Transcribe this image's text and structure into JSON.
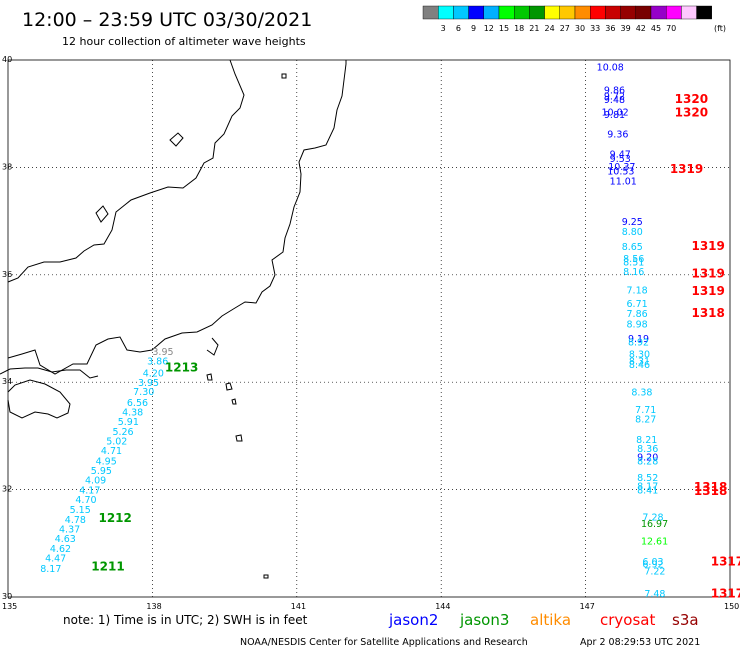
{
  "header": {
    "title": "12:00 – 23:59 UTC 03/30/2021",
    "subtitle": "12 hour collection of altimeter wave heights"
  },
  "legend": {
    "unit": "(ft)",
    "colors": [
      "#808080",
      "#00ffff",
      "#00c8ff",
      "#0000ff",
      "#00b0ff",
      "#00ff00",
      "#00c800",
      "#009600",
      "#ffff00",
      "#ffc800",
      "#ff8c00",
      "#ff0000",
      "#c80000",
      "#960000",
      "#780000",
      "#9600c8",
      "#ff00ff",
      "#ffc8ff",
      "#000000"
    ],
    "labels": [
      "3",
      "6",
      "9",
      "12",
      "15",
      "18",
      "21",
      "24",
      "27",
      "30",
      "33",
      "36",
      "39",
      "42",
      "45",
      "70"
    ]
  },
  "map": {
    "lat_labels": [
      "40",
      "38",
      "36",
      "34",
      "32",
      "30"
    ],
    "lon_labels": [
      "135",
      "138",
      "141",
      "144",
      "147",
      "150"
    ]
  },
  "tracks": {
    "west": {
      "color": "#00c8ff",
      "labels": [
        {
          "t": "3.95",
          "lon": 138.0,
          "lat": 34.51,
          "c": "#888888"
        },
        {
          "t": "3.86",
          "lon": 137.89,
          "lat": 34.33
        },
        {
          "t": "4.20",
          "lon": 137.8,
          "lat": 34.11
        },
        {
          "t": "3.95",
          "lon": 137.7,
          "lat": 33.93
        },
        {
          "t": "7.30",
          "lon": 137.6,
          "lat": 33.76
        },
        {
          "t": "6.56",
          "lon": 137.47,
          "lat": 33.56
        },
        {
          "t": "4.38",
          "lon": 137.37,
          "lat": 33.38
        },
        {
          "t": "5.91",
          "lon": 137.28,
          "lat": 33.2
        },
        {
          "t": "5.26",
          "lon": 137.17,
          "lat": 33.02
        },
        {
          "t": "5.02",
          "lon": 137.04,
          "lat": 32.84
        },
        {
          "t": "4.71",
          "lon": 136.93,
          "lat": 32.66
        },
        {
          "t": "4.95",
          "lon": 136.82,
          "lat": 32.47
        },
        {
          "t": "5.95",
          "lon": 136.72,
          "lat": 32.29
        },
        {
          "t": "4.09",
          "lon": 136.6,
          "lat": 32.11
        },
        {
          "t": "4.17",
          "lon": 136.48,
          "lat": 31.93
        },
        {
          "t": "4.70",
          "lon": 136.4,
          "lat": 31.75
        },
        {
          "t": "5.15",
          "lon": 136.28,
          "lat": 31.56
        },
        {
          "t": "4.78",
          "lon": 136.18,
          "lat": 31.38
        },
        {
          "t": "4.37",
          "lon": 136.06,
          "lat": 31.2
        },
        {
          "t": "4.63",
          "lon": 135.97,
          "lat": 31.02
        },
        {
          "t": "4.62",
          "lon": 135.87,
          "lat": 30.84
        },
        {
          "t": "4.47",
          "lon": 135.77,
          "lat": 30.66
        },
        {
          "t": "8.17",
          "lon": 135.67,
          "lat": 30.47
        }
      ],
      "times": [
        {
          "t": "1213",
          "lon": 138.26,
          "lat": 34.2,
          "c": "#009600"
        },
        {
          "t": "1212",
          "lon": 136.88,
          "lat": 31.4,
          "c": "#009600"
        },
        {
          "t": "1211",
          "lon": 136.73,
          "lat": 30.49,
          "c": "#009600"
        }
      ]
    },
    "east": {
      "labels": [
        {
          "t": "10.08",
          "lon": 147.23,
          "lat": 39.8,
          "c": "#0000ff"
        },
        {
          "t": "9.86",
          "lon": 147.38,
          "lat": 39.38,
          "c": "#0000ff"
        },
        {
          "t": "9.72",
          "lon": 147.38,
          "lat": 39.26,
          "c": "#0000ff"
        },
        {
          "t": "9.48",
          "lon": 147.38,
          "lat": 39.2,
          "c": "#0000ff"
        },
        {
          "t": "10.02",
          "lon": 147.33,
          "lat": 38.97,
          "c": "#0000ff"
        },
        {
          "t": "9.81",
          "lon": 147.38,
          "lat": 38.92,
          "c": "#0000ff"
        },
        {
          "t": "9.36",
          "lon": 147.45,
          "lat": 38.56,
          "c": "#0000ff"
        },
        {
          "t": "9.47",
          "lon": 147.5,
          "lat": 38.18,
          "c": "#0000ff"
        },
        {
          "t": "9.53",
          "lon": 147.5,
          "lat": 38.1,
          "c": "#0000ff"
        },
        {
          "t": "10.37",
          "lon": 147.47,
          "lat": 37.95,
          "c": "#0000ff"
        },
        {
          "t": "10.53",
          "lon": 147.45,
          "lat": 37.87,
          "c": "#0000ff"
        },
        {
          "t": "11.01",
          "lon": 147.5,
          "lat": 37.68,
          "c": "#0000ff"
        },
        {
          "t": "9.25",
          "lon": 147.75,
          "lat": 36.93,
          "c": "#0000ff"
        },
        {
          "t": "8.80",
          "lon": 147.75,
          "lat": 36.74,
          "c": "#00c8ff"
        },
        {
          "t": "8.65",
          "lon": 147.75,
          "lat": 36.46,
          "c": "#00c8ff"
        },
        {
          "t": "8.56",
          "lon": 147.78,
          "lat": 36.24,
          "c": "#00c8ff"
        },
        {
          "t": "8.51",
          "lon": 147.78,
          "lat": 36.17,
          "c": "#00c8ff"
        },
        {
          "t": "8.16",
          "lon": 147.78,
          "lat": 36.0,
          "c": "#00c8ff"
        },
        {
          "t": "7.18",
          "lon": 147.85,
          "lat": 35.65,
          "c": "#00c8ff"
        },
        {
          "t": "6.71",
          "lon": 147.85,
          "lat": 35.4,
          "c": "#00c8ff"
        },
        {
          "t": "7.86",
          "lon": 147.85,
          "lat": 35.21,
          "c": "#00c8ff"
        },
        {
          "t": "8.98",
          "lon": 147.85,
          "lat": 35.02,
          "c": "#00c8ff"
        },
        {
          "t": "9.19",
          "lon": 147.88,
          "lat": 34.75,
          "c": "#0000ff"
        },
        {
          "t": "8.92",
          "lon": 147.88,
          "lat": 34.68,
          "c": "#00c8ff"
        },
        {
          "t": "8.30",
          "lon": 147.9,
          "lat": 34.46,
          "c": "#00c8ff"
        },
        {
          "t": "8.31",
          "lon": 147.9,
          "lat": 34.33,
          "c": "#00c8ff"
        },
        {
          "t": "8.46",
          "lon": 147.9,
          "lat": 34.26,
          "c": "#00c8ff"
        },
        {
          "t": "8.38",
          "lon": 147.95,
          "lat": 33.75,
          "c": "#00c8ff"
        },
        {
          "t": "7.71",
          "lon": 148.03,
          "lat": 33.43,
          "c": "#00c8ff"
        },
        {
          "t": "8.27",
          "lon": 148.03,
          "lat": 33.25,
          "c": "#00c8ff"
        },
        {
          "t": "8.21",
          "lon": 148.05,
          "lat": 32.87,
          "c": "#00c8ff"
        },
        {
          "t": "8.36",
          "lon": 148.07,
          "lat": 32.7,
          "c": "#00c8ff"
        },
        {
          "t": "9.20",
          "lon": 148.07,
          "lat": 32.54,
          "c": "#0000ff"
        },
        {
          "t": "8.28",
          "lon": 148.07,
          "lat": 32.47,
          "c": "#00c8ff"
        },
        {
          "t": "8.52",
          "lon": 148.07,
          "lat": 32.16,
          "c": "#00c8ff"
        },
        {
          "t": "8.17",
          "lon": 148.07,
          "lat": 32.0,
          "c": "#00c8ff"
        },
        {
          "t": "8.41",
          "lon": 148.07,
          "lat": 31.93,
          "c": "#00c8ff"
        },
        {
          "t": "7.28",
          "lon": 148.18,
          "lat": 31.42,
          "c": "#00c8ff"
        },
        {
          "t": "16.97",
          "lon": 148.15,
          "lat": 31.3,
          "c": "#009600"
        },
        {
          "t": "12.61",
          "lon": 148.15,
          "lat": 30.98,
          "c": "#00ff00"
        },
        {
          "t": "6.03",
          "lon": 148.18,
          "lat": 30.6,
          "c": "#00c8ff"
        },
        {
          "t": "6.92",
          "lon": 148.18,
          "lat": 30.55,
          "c": "#00c8ff"
        },
        {
          "t": "7.22",
          "lon": 148.22,
          "lat": 30.42,
          "c": "#00c8ff"
        },
        {
          "t": "7.48",
          "lon": 148.22,
          "lat": 30.0,
          "c": "#00c8ff"
        }
      ],
      "times": [
        {
          "t": "1320",
          "lon": 148.85,
          "lat": 39.2,
          "c": "#ff0000"
        },
        {
          "t": "1320",
          "lon": 148.85,
          "lat": 38.95,
          "c": "#ff0000"
        },
        {
          "t": "1319",
          "lon": 148.75,
          "lat": 37.9,
          "c": "#ff0000"
        },
        {
          "t": "1319",
          "lon": 149.2,
          "lat": 36.46,
          "c": "#ff0000"
        },
        {
          "t": "1319",
          "lon": 149.2,
          "lat": 35.95,
          "c": "#ff0000"
        },
        {
          "t": "1319",
          "lon": 149.2,
          "lat": 35.62,
          "c": "#ff0000"
        },
        {
          "t": "1318",
          "lon": 149.2,
          "lat": 35.21,
          "c": "#ff0000"
        },
        {
          "t": "1318",
          "lon": 149.25,
          "lat": 31.97,
          "c": "#ff0000"
        },
        {
          "t": "1318",
          "lon": 149.25,
          "lat": 31.9,
          "c": "#ff0000"
        },
        {
          "t": "1317",
          "lon": 149.6,
          "lat": 30.59,
          "c": "#ff0000"
        },
        {
          "t": "1317",
          "lon": 149.6,
          "lat": 29.99,
          "c": "#ff0000"
        }
      ]
    }
  },
  "footer": {
    "note": "note:  1) Time is in UTC;  2) SWH is in feet",
    "satellites": [
      {
        "name": "jason2",
        "color": "#0000ff"
      },
      {
        "name": "jason3",
        "color": "#009600"
      },
      {
        "name": "altika",
        "color": "#ff8c00"
      },
      {
        "name": "cryosat",
        "color": "#ff0000"
      },
      {
        "name": "s3a",
        "color": "#960000"
      }
    ],
    "credit": "NOAA/NESDIS Center for Satellite Applications and Research",
    "timestamp": "Apr  2 08:29:53 UTC 2021"
  }
}
